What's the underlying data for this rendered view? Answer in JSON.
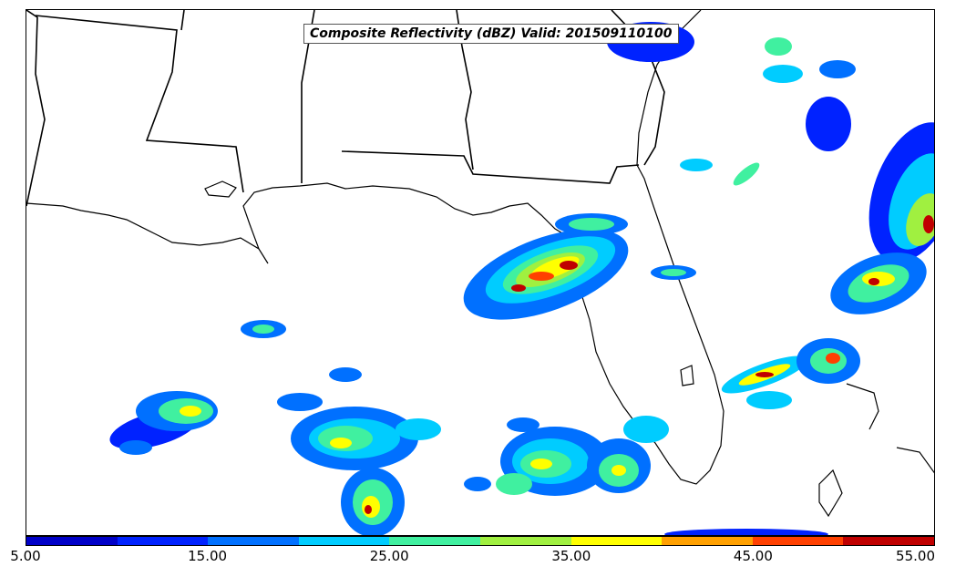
{
  "title": "Composite Reflectivity (dBZ) Valid: 201509110100",
  "colorbar": {
    "colors": [
      "#0000c8",
      "#0022ff",
      "#0070ff",
      "#00ccff",
      "#40f0a0",
      "#a0f040",
      "#ffff00",
      "#ffa000",
      "#ff4000",
      "#c00000"
    ],
    "ticks": [
      "5.00",
      "15.00",
      "25.00",
      "35.00",
      "45.00",
      "55.00"
    ]
  }
}
